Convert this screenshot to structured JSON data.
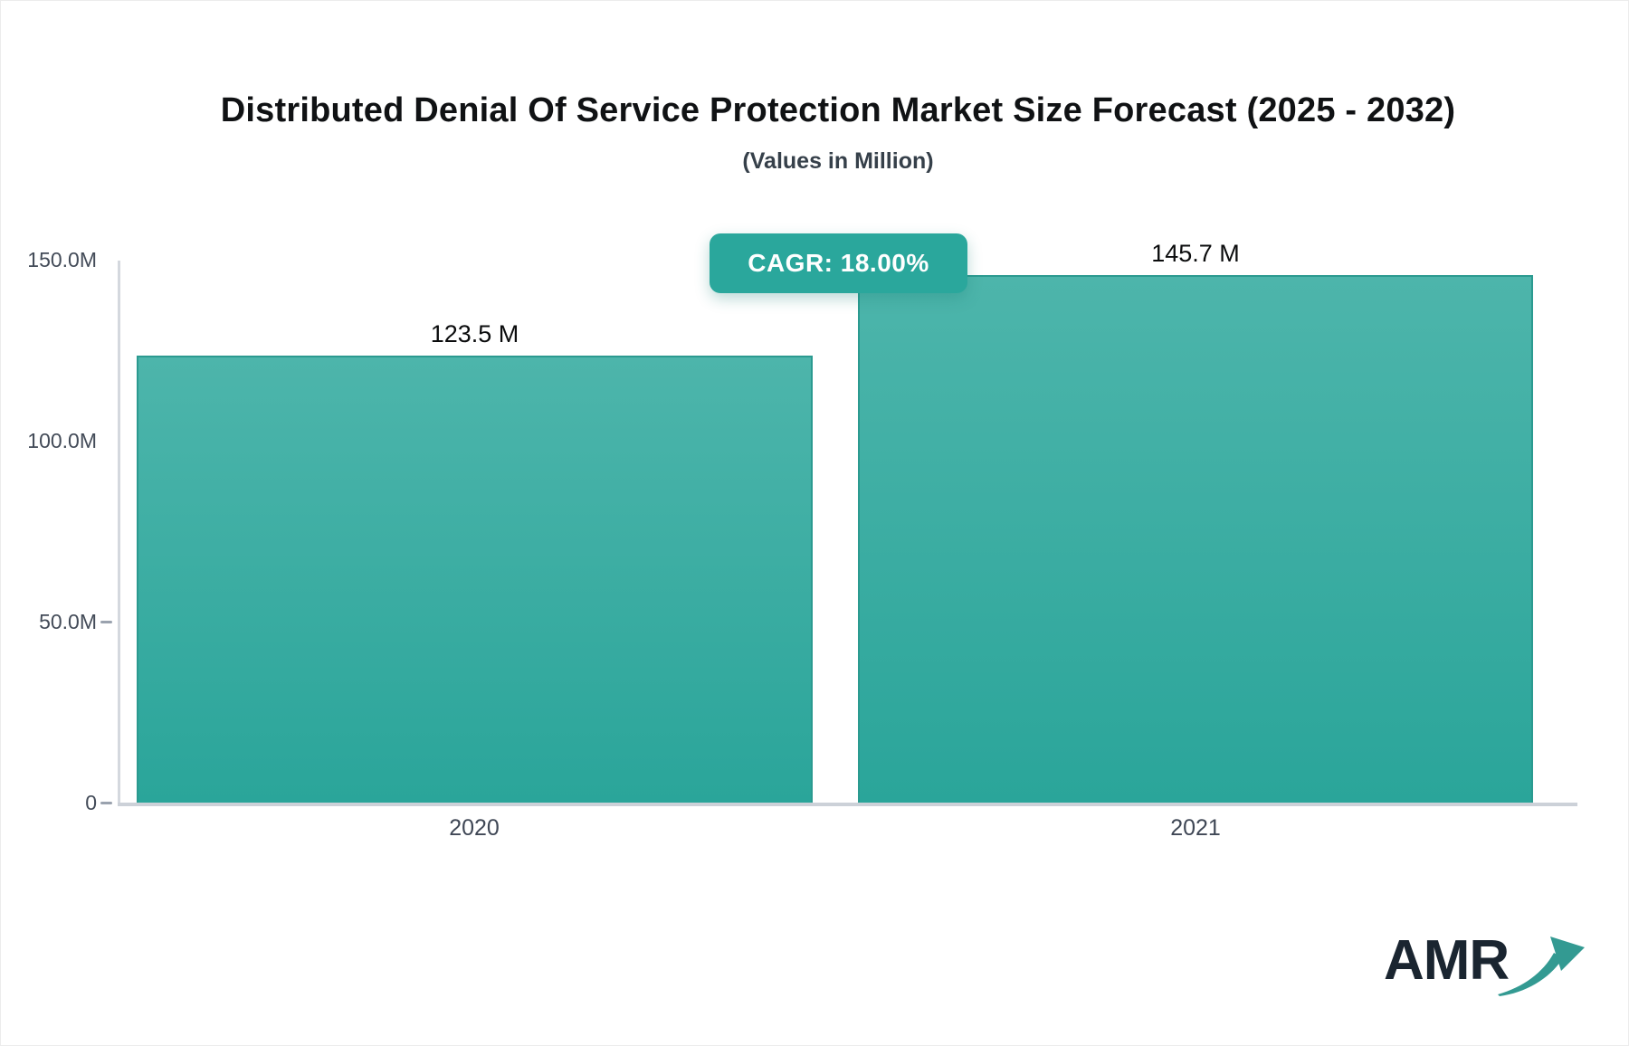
{
  "header": {
    "title": "Distributed Denial Of Service Protection Market Size Forecast (2025 - 2032)",
    "subtitle": "(Values in Million)"
  },
  "badge": {
    "label": "CAGR: 18.00%",
    "bg_color": "#2aa79c",
    "text_color": "#ffffff"
  },
  "chart_data": {
    "type": "bar",
    "title": "Distributed Denial Of Service Protection Market Size Forecast (2025 - 2032)",
    "subtitle": "(Values in Million)",
    "categories": [
      "2020",
      "2021"
    ],
    "values": [
      123.5,
      145.7
    ],
    "value_labels": [
      "123.5 M",
      "145.7 M"
    ],
    "cagr_label": "CAGR: 18.00%",
    "xlabel": "",
    "ylabel": "",
    "ylim": [
      0,
      150
    ],
    "yticks": [
      {
        "label": "150.0M",
        "value": 150
      },
      {
        "label": "100.0M",
        "value": 100
      },
      {
        "label": "50.0M",
        "value": 50
      },
      {
        "label": "0",
        "value": 0
      }
    ],
    "grid": false,
    "legend": false,
    "bar_gradient_top": "#4db5ab",
    "bar_gradient_bottom": "#2aa59a",
    "bar_border_color": "#2b9a90",
    "axis_color": "#d4d8de",
    "tick_label_color": "#434b58"
  },
  "logo": {
    "text": "AMR",
    "icon": "growth-arrow-icon",
    "text_color": "#1a2530",
    "accent_color": "#339a92"
  }
}
